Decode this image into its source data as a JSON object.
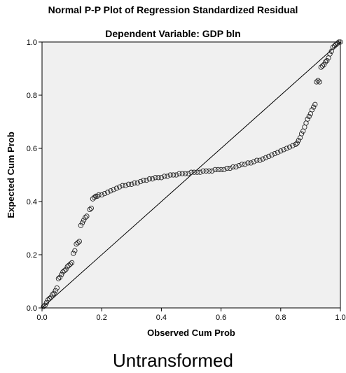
{
  "chart_data": {
    "type": "scatter",
    "title": "Normal P-P Plot of Regression Standardized Residual",
    "subtitle": "Dependent Variable: GDP bln",
    "xlabel": "Observed Cum Prob",
    "ylabel": "Expected Cum Prob",
    "xlim": [
      0,
      1
    ],
    "ylim": [
      0,
      1
    ],
    "x_ticks": [
      "0.0",
      "0.2",
      "0.4",
      "0.6",
      "0.8",
      "1.0"
    ],
    "y_ticks": [
      "0.0",
      "0.2",
      "0.4",
      "0.6",
      "0.8",
      "1.0"
    ],
    "grid": false,
    "reference_line": {
      "from": [
        0,
        0
      ],
      "to": [
        1,
        1
      ]
    },
    "caption": "Untransformed",
    "series": [
      {
        "points": [
          [
            0.005,
            0.005
          ],
          [
            0.01,
            0.01
          ],
          [
            0.015,
            0.02
          ],
          [
            0.02,
            0.03
          ],
          [
            0.025,
            0.035
          ],
          [
            0.03,
            0.04
          ],
          [
            0.035,
            0.05
          ],
          [
            0.04,
            0.055
          ],
          [
            0.045,
            0.065
          ],
          [
            0.05,
            0.075
          ],
          [
            0.055,
            0.11
          ],
          [
            0.06,
            0.115
          ],
          [
            0.065,
            0.125
          ],
          [
            0.07,
            0.135
          ],
          [
            0.075,
            0.14
          ],
          [
            0.08,
            0.145
          ],
          [
            0.085,
            0.155
          ],
          [
            0.09,
            0.16
          ],
          [
            0.095,
            0.165
          ],
          [
            0.1,
            0.17
          ],
          [
            0.105,
            0.205
          ],
          [
            0.11,
            0.215
          ],
          [
            0.115,
            0.24
          ],
          [
            0.12,
            0.245
          ],
          [
            0.125,
            0.25
          ],
          [
            0.13,
            0.31
          ],
          [
            0.135,
            0.32
          ],
          [
            0.14,
            0.33
          ],
          [
            0.145,
            0.34
          ],
          [
            0.15,
            0.345
          ],
          [
            0.16,
            0.37
          ],
          [
            0.165,
            0.375
          ],
          [
            0.17,
            0.41
          ],
          [
            0.175,
            0.415
          ],
          [
            0.18,
            0.42
          ],
          [
            0.185,
            0.42
          ],
          [
            0.19,
            0.425
          ],
          [
            0.2,
            0.425
          ],
          [
            0.21,
            0.43
          ],
          [
            0.22,
            0.435
          ],
          [
            0.23,
            0.44
          ],
          [
            0.24,
            0.445
          ],
          [
            0.25,
            0.45
          ],
          [
            0.26,
            0.455
          ],
          [
            0.27,
            0.46
          ],
          [
            0.28,
            0.46
          ],
          [
            0.29,
            0.465
          ],
          [
            0.3,
            0.465
          ],
          [
            0.31,
            0.47
          ],
          [
            0.32,
            0.47
          ],
          [
            0.33,
            0.475
          ],
          [
            0.34,
            0.48
          ],
          [
            0.35,
            0.48
          ],
          [
            0.36,
            0.485
          ],
          [
            0.37,
            0.485
          ],
          [
            0.38,
            0.49
          ],
          [
            0.39,
            0.49
          ],
          [
            0.4,
            0.49
          ],
          [
            0.41,
            0.495
          ],
          [
            0.42,
            0.495
          ],
          [
            0.43,
            0.5
          ],
          [
            0.44,
            0.5
          ],
          [
            0.45,
            0.5
          ],
          [
            0.46,
            0.505
          ],
          [
            0.47,
            0.505
          ],
          [
            0.48,
            0.505
          ],
          [
            0.49,
            0.505
          ],
          [
            0.5,
            0.51
          ],
          [
            0.51,
            0.51
          ],
          [
            0.52,
            0.51
          ],
          [
            0.53,
            0.51
          ],
          [
            0.54,
            0.515
          ],
          [
            0.55,
            0.515
          ],
          [
            0.56,
            0.515
          ],
          [
            0.57,
            0.515
          ],
          [
            0.58,
            0.52
          ],
          [
            0.59,
            0.52
          ],
          [
            0.6,
            0.52
          ],
          [
            0.61,
            0.52
          ],
          [
            0.62,
            0.525
          ],
          [
            0.63,
            0.525
          ],
          [
            0.64,
            0.53
          ],
          [
            0.65,
            0.53
          ],
          [
            0.66,
            0.535
          ],
          [
            0.67,
            0.54
          ],
          [
            0.68,
            0.54
          ],
          [
            0.69,
            0.545
          ],
          [
            0.7,
            0.545
          ],
          [
            0.71,
            0.55
          ],
          [
            0.72,
            0.555
          ],
          [
            0.73,
            0.555
          ],
          [
            0.74,
            0.56
          ],
          [
            0.75,
            0.565
          ],
          [
            0.76,
            0.57
          ],
          [
            0.77,
            0.575
          ],
          [
            0.78,
            0.58
          ],
          [
            0.79,
            0.585
          ],
          [
            0.8,
            0.59
          ],
          [
            0.81,
            0.595
          ],
          [
            0.82,
            0.6
          ],
          [
            0.83,
            0.605
          ],
          [
            0.84,
            0.61
          ],
          [
            0.85,
            0.615
          ],
          [
            0.855,
            0.62
          ],
          [
            0.86,
            0.63
          ],
          [
            0.865,
            0.64
          ],
          [
            0.87,
            0.655
          ],
          [
            0.875,
            0.665
          ],
          [
            0.88,
            0.68
          ],
          [
            0.885,
            0.695
          ],
          [
            0.89,
            0.71
          ],
          [
            0.895,
            0.72
          ],
          [
            0.9,
            0.73
          ],
          [
            0.905,
            0.745
          ],
          [
            0.91,
            0.755
          ],
          [
            0.915,
            0.765
          ],
          [
            0.92,
            0.85
          ],
          [
            0.925,
            0.855
          ],
          [
            0.93,
            0.85
          ],
          [
            0.935,
            0.905
          ],
          [
            0.94,
            0.91
          ],
          [
            0.945,
            0.915
          ],
          [
            0.95,
            0.925
          ],
          [
            0.955,
            0.93
          ],
          [
            0.96,
            0.94
          ],
          [
            0.965,
            0.955
          ],
          [
            0.97,
            0.965
          ],
          [
            0.975,
            0.98
          ],
          [
            0.98,
            0.985
          ],
          [
            0.985,
            0.99
          ],
          [
            0.99,
            0.995
          ],
          [
            0.995,
            1.0
          ],
          [
            1.0,
            1.0
          ]
        ]
      }
    ]
  }
}
